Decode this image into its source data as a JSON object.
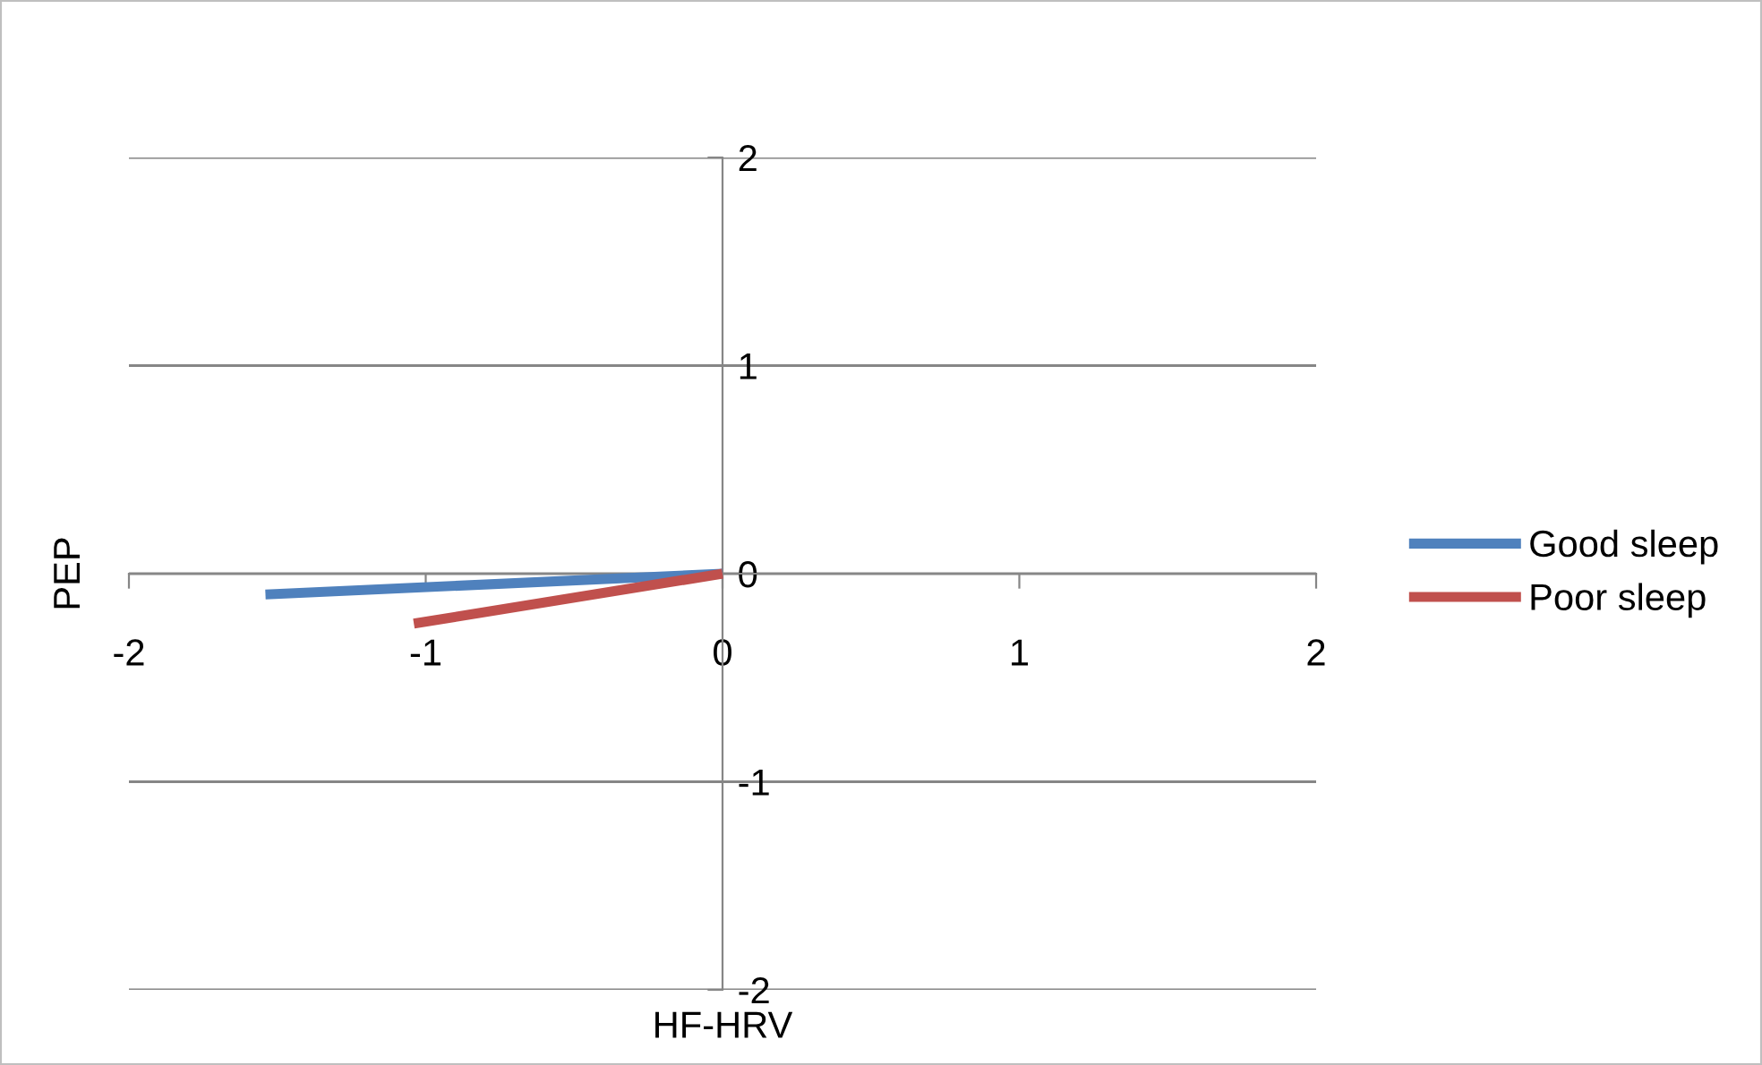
{
  "chart_data": {
    "type": "line",
    "xlabel": "HF-HRV",
    "ylabel": "PEP",
    "series": [
      {
        "name": "Good sleep",
        "color": "#4f81bd",
        "x": [
          -1.54,
          0
        ],
        "values": [
          -0.1,
          0
        ]
      },
      {
        "name": "Poor sleep",
        "color": "#c0504d",
        "x": [
          -1.04,
          0
        ],
        "values": [
          -0.24,
          0
        ]
      }
    ],
    "xlim": [
      -2,
      2
    ],
    "ylim": [
      -2,
      2
    ],
    "xticks": [
      -2,
      -1,
      0,
      1,
      2
    ],
    "yticks": [
      -2,
      -1,
      0,
      1,
      2
    ],
    "grid": "y",
    "legend": "right",
    "marker": "none",
    "line_style": "solid"
  }
}
